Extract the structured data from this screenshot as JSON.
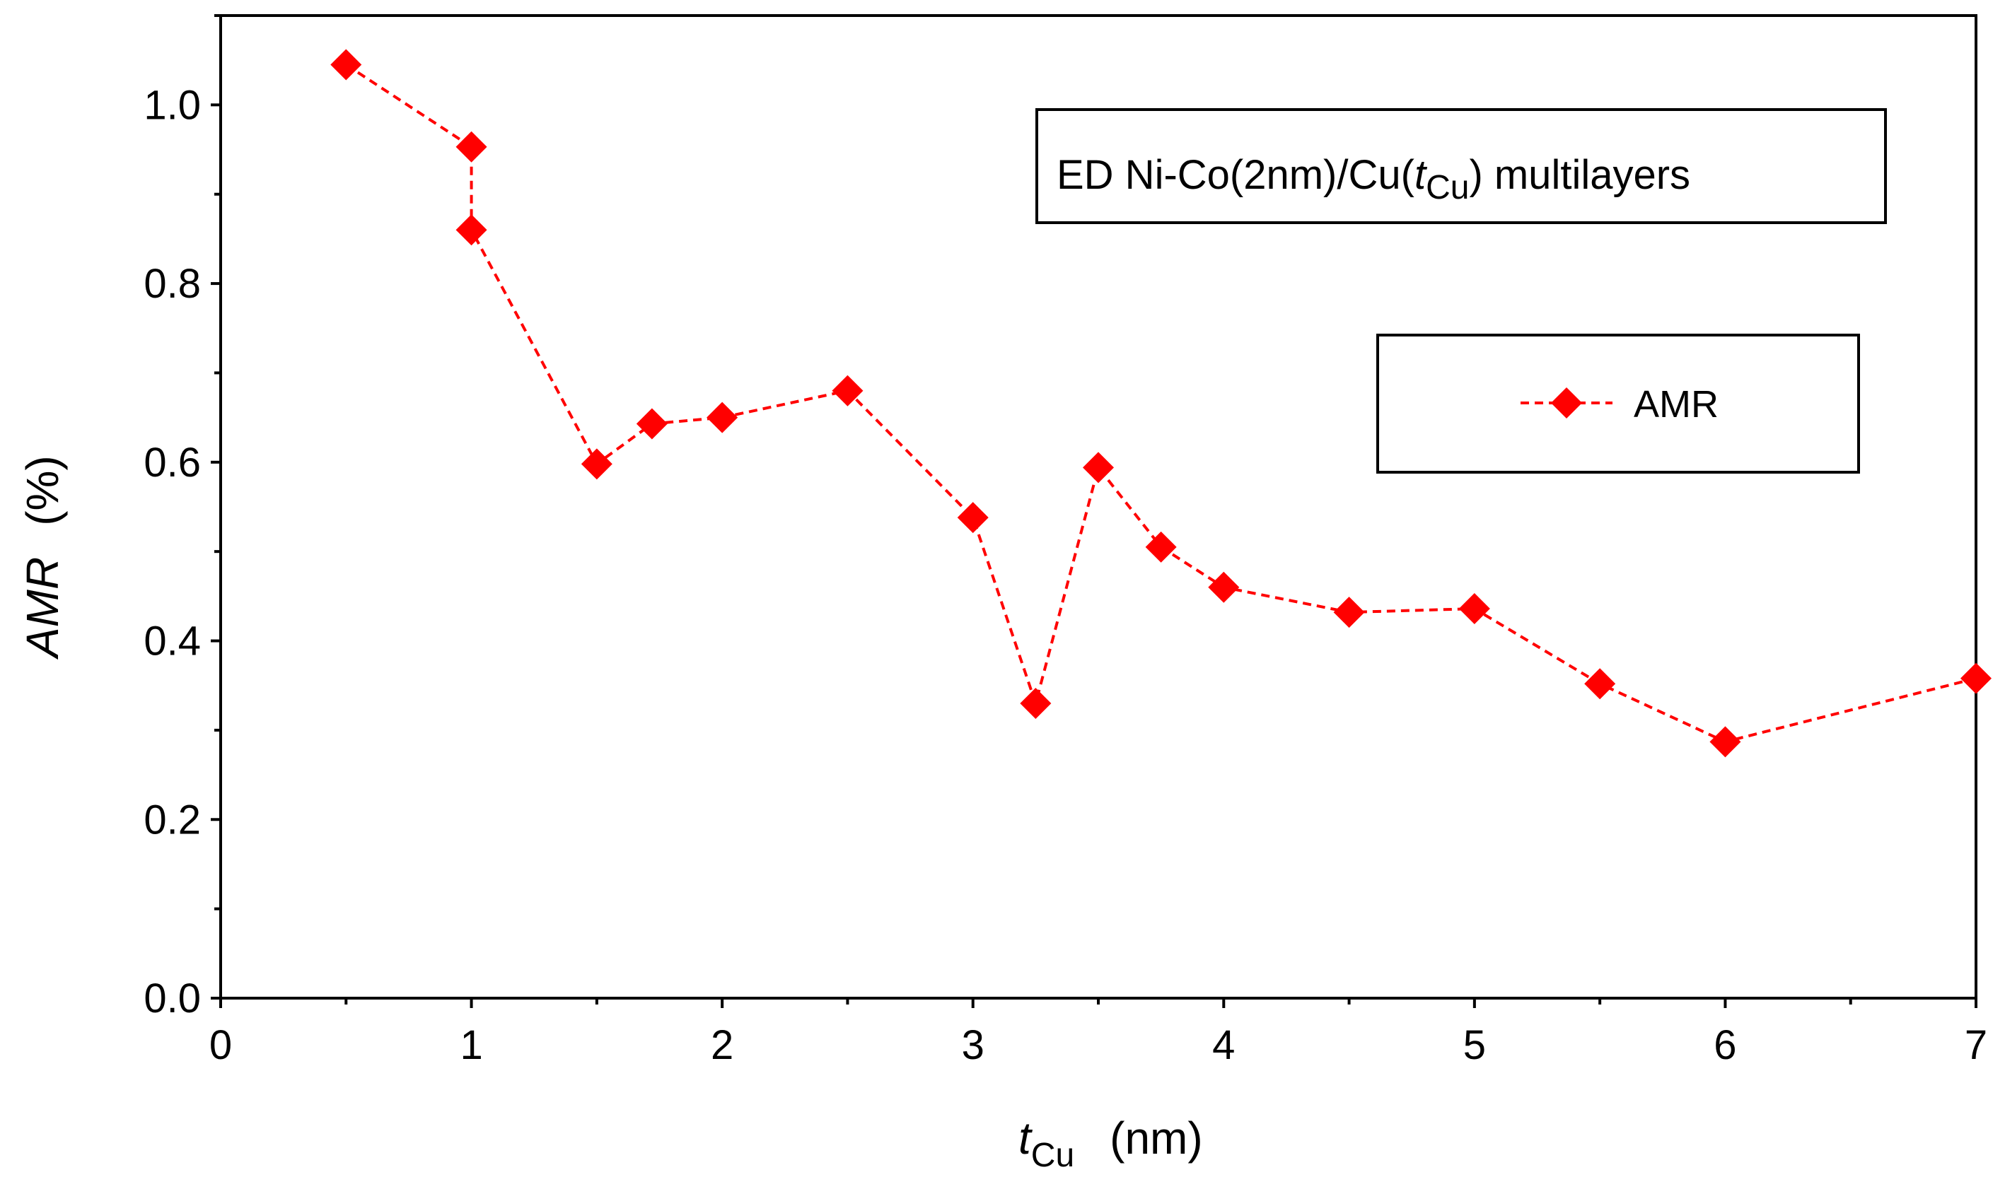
{
  "chart_data": {
    "type": "line",
    "title": "ED Ni-Co(2nm)/Cu(tCu) multilayers",
    "title_parts": {
      "prefix": "ED Ni-Co(2nm)/Cu(",
      "var": "t",
      "sub": "Cu",
      "suffix": ") multilayers"
    },
    "xlabel": "tCu (nm)",
    "xlabel_parts": {
      "var": "t",
      "sub": "Cu",
      "unit": "(nm)"
    },
    "ylabel": "AMR (%)",
    "ylabel_parts": {
      "var": "AMR",
      "unit": "(%)"
    },
    "xlim": [
      0,
      7
    ],
    "ylim": [
      0,
      1.1
    ],
    "x_ticks": [
      0,
      1,
      2,
      3,
      4,
      5,
      6,
      7
    ],
    "x_tick_labels": [
      "0",
      "1",
      "2",
      "3",
      "4",
      "5",
      "6",
      "7"
    ],
    "y_ticks": [
      0,
      0.2,
      0.4,
      0.6,
      0.8,
      1.0
    ],
    "y_tick_labels": [
      "0.0",
      "0.2",
      "0.4",
      "0.6",
      "0.8",
      "1.0"
    ],
    "grid": false,
    "legend_position": "upper-right",
    "series": [
      {
        "name": "AMR",
        "color": "#ff0000",
        "line_style": "dashed",
        "marker": "diamond",
        "x": [
          0.5,
          1.0,
          1.0,
          1.5,
          1.72,
          2.0,
          2.5,
          3.0,
          3.25,
          3.5,
          3.75,
          4.0,
          4.5,
          5.0,
          5.5,
          6.0,
          7.0
        ],
        "y": [
          1.045,
          0.953,
          0.86,
          0.598,
          0.643,
          0.65,
          0.68,
          0.538,
          0.33,
          0.594,
          0.505,
          0.46,
          0.432,
          0.436,
          0.352,
          0.287,
          0.358
        ]
      }
    ]
  }
}
